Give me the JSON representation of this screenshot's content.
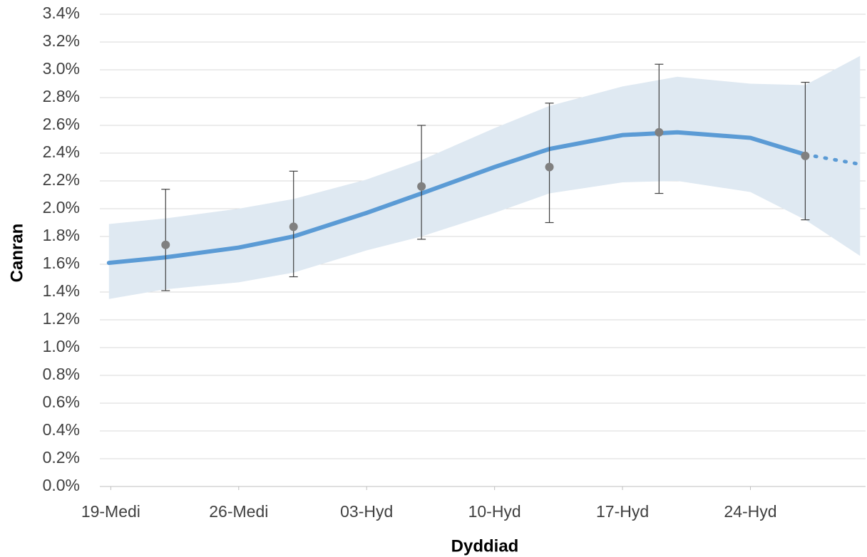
{
  "chart_data": {
    "type": "line",
    "x_label": "Dyddiad",
    "y_label": "Canran",
    "grid": true,
    "xlim": [
      -0.6,
      41.3
    ],
    "xticks": [
      {
        "value": 0,
        "label": "19-Medi"
      },
      {
        "value": 7,
        "label": "26-Medi"
      },
      {
        "value": 14,
        "label": "03-Hyd"
      },
      {
        "value": 21,
        "label": "10-Hyd"
      },
      {
        "value": 28,
        "label": "17-Hyd"
      },
      {
        "value": 35,
        "label": "24-Hyd"
      }
    ],
    "ylim": [
      0,
      3.4
    ],
    "yticks": [
      {
        "value": 0,
        "label": "0.0%"
      },
      {
        "value": 0.2,
        "label": "0.2%"
      },
      {
        "value": 0.4,
        "label": "0.4%"
      },
      {
        "value": 0.6,
        "label": "0.6%"
      },
      {
        "value": 0.8,
        "label": "0.8%"
      },
      {
        "value": 1.0,
        "label": "1.0%"
      },
      {
        "value": 1.2,
        "label": "1.2%"
      },
      {
        "value": 1.4,
        "label": "1.4%"
      },
      {
        "value": 1.6,
        "label": "1.6%"
      },
      {
        "value": 1.8,
        "label": "1.8%"
      },
      {
        "value": 2.0,
        "label": "2.0%"
      },
      {
        "value": 2.2,
        "label": "2.2%"
      },
      {
        "value": 2.4,
        "label": "2.4%"
      },
      {
        "value": 2.6,
        "label": "2.6%"
      },
      {
        "value": 2.8,
        "label": "2.8%"
      },
      {
        "value": 3.0,
        "label": "3.0%"
      },
      {
        "value": 3.2,
        "label": "3.2%"
      },
      {
        "value": 3.4,
        "label": "3.4%"
      }
    ],
    "band": {
      "color": "#dfe9f2",
      "x": [
        -0.1,
        3,
        7,
        10,
        14,
        17,
        21,
        24,
        28,
        31,
        35,
        38,
        41
      ],
      "upper": [
        1.89,
        1.93,
        2.0,
        2.07,
        2.21,
        2.35,
        2.58,
        2.74,
        2.88,
        2.95,
        2.9,
        2.89,
        3.1
      ],
      "lower": [
        1.35,
        1.42,
        1.47,
        1.54,
        1.7,
        1.8,
        1.97,
        2.11,
        2.19,
        2.2,
        2.12,
        1.92,
        1.66
      ]
    },
    "trend": {
      "color": "#5b9bd5",
      "x": [
        -0.1,
        3,
        7,
        10,
        14,
        17,
        21,
        24,
        28,
        31,
        35,
        38
      ],
      "values": [
        1.61,
        1.65,
        1.72,
        1.8,
        1.97,
        2.11,
        2.3,
        2.43,
        2.53,
        2.55,
        2.51,
        2.39
      ]
    },
    "projection": {
      "color": "#5b9bd5",
      "dashed": true,
      "x": [
        38,
        41
      ],
      "values": [
        2.39,
        2.32
      ]
    },
    "estimates": {
      "color": "#808080",
      "x": [
        3,
        10,
        17,
        24,
        30,
        38
      ],
      "values": [
        1.74,
        1.87,
        2.16,
        2.3,
        2.55,
        2.38
      ],
      "error_low": [
        1.41,
        1.51,
        1.78,
        1.9,
        2.11,
        1.92
      ],
      "error_high": [
        2.14,
        2.27,
        2.6,
        2.76,
        3.04,
        2.91
      ]
    }
  }
}
